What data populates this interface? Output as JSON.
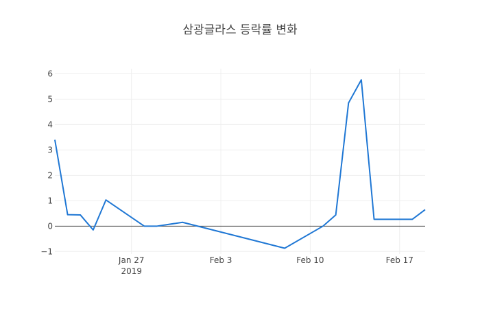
{
  "chart_data": {
    "type": "line",
    "title": "삼광글라스 등락률 변화",
    "xlabel": "",
    "ylabel": "",
    "x_axis": {
      "type": "date",
      "range": [
        "2019-01-21",
        "2019-02-19"
      ],
      "ticks": [
        {
          "date": "2019-01-27",
          "label": "Jan 27",
          "sublabel": "2019"
        },
        {
          "date": "2019-02-03",
          "label": "Feb 3",
          "sublabel": ""
        },
        {
          "date": "2019-02-10",
          "label": "Feb 10",
          "sublabel": ""
        },
        {
          "date": "2019-02-17",
          "label": "Feb 17",
          "sublabel": ""
        }
      ]
    },
    "y_axis": {
      "range": [
        -1.1,
        6.2
      ],
      "ticks": [
        {
          "value": -1,
          "label": "−1"
        },
        {
          "value": 0,
          "label": "0"
        },
        {
          "value": 1,
          "label": "1"
        },
        {
          "value": 2,
          "label": "2"
        },
        {
          "value": 3,
          "label": "3"
        },
        {
          "value": 4,
          "label": "4"
        },
        {
          "value": 5,
          "label": "5"
        },
        {
          "value": 6,
          "label": "6"
        }
      ]
    },
    "grid": true,
    "legend": "none",
    "series": [
      {
        "color": "#1f77d4",
        "points": [
          {
            "x": "2019-01-21",
            "y": 3.4
          },
          {
            "x": "2019-01-22",
            "y": 0.45
          },
          {
            "x": "2019-01-23",
            "y": 0.44
          },
          {
            "x": "2019-01-24",
            "y": -0.15
          },
          {
            "x": "2019-01-25",
            "y": 1.03
          },
          {
            "x": "2019-01-28",
            "y": 0.0
          },
          {
            "x": "2019-01-29",
            "y": 0.0
          },
          {
            "x": "2019-01-31",
            "y": 0.15
          },
          {
            "x": "2019-02-08",
            "y": -0.87
          },
          {
            "x": "2019-02-11",
            "y": 0.0
          },
          {
            "x": "2019-02-12",
            "y": 0.44
          },
          {
            "x": "2019-02-13",
            "y": 4.85
          },
          {
            "x": "2019-02-14",
            "y": 5.76
          },
          {
            "x": "2019-02-15",
            "y": 0.27
          },
          {
            "x": "2019-02-18",
            "y": 0.27
          },
          {
            "x": "2019-02-19",
            "y": 0.65
          }
        ]
      }
    ]
  }
}
